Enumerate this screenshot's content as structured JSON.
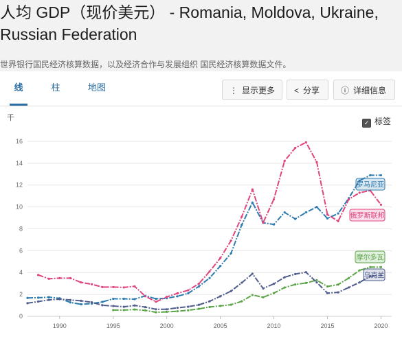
{
  "header": {
    "title": "人均 GDP（现价美元） - Romania, Moldova, Ukraine, Russian Federation",
    "subtitle": "世界银行国民经济核算数据，以及经济合作与发展组织 国民经济核算数据文件。"
  },
  "tabs": [
    {
      "label": "线",
      "active": true
    },
    {
      "label": "柱",
      "active": false
    },
    {
      "label": "地图",
      "active": false
    }
  ],
  "buttons": {
    "more": "显示更多",
    "share": "分享",
    "details": "详细信息"
  },
  "labels_toggle": {
    "label": "标签",
    "checked": true
  },
  "colors": {
    "romania": "#2e7bb0",
    "russia": "#e0447f",
    "moldova": "#5aa446",
    "ukraine": "#4f5d8c",
    "tab_accent": "#2b6ea3"
  },
  "chart_data": {
    "type": "line",
    "unit_label": "千",
    "xlim": [
      1987,
      2021
    ],
    "ylim": [
      0,
      17
    ],
    "x_ticks": [
      1990,
      1995,
      2000,
      2005,
      2010,
      2015,
      2020
    ],
    "y_ticks": [
      0,
      2,
      4,
      6,
      8,
      10,
      12,
      14,
      16
    ],
    "series": [
      {
        "name": "罗马尼亚",
        "key": "romania",
        "x": [
          1987,
          1988,
          1989,
          1990,
          1991,
          1992,
          1993,
          1994,
          1995,
          1996,
          1997,
          1998,
          1999,
          2000,
          2001,
          2002,
          2003,
          2004,
          2005,
          2006,
          2007,
          2008,
          2009,
          2010,
          2011,
          2012,
          2013,
          2014,
          2015,
          2016,
          2017,
          2018,
          2019,
          2020
        ],
        "values": [
          1.68,
          1.7,
          1.75,
          1.65,
          1.27,
          1.1,
          1.16,
          1.32,
          1.6,
          1.6,
          1.57,
          1.87,
          1.6,
          1.65,
          1.83,
          2.1,
          2.73,
          3.5,
          4.6,
          5.76,
          8.36,
          10.4,
          8.55,
          8.4,
          9.5,
          8.9,
          9.5,
          10.0,
          8.95,
          9.4,
          10.8,
          12.4,
          12.9,
          12.9
        ]
      },
      {
        "name": "俄罗斯联邦",
        "key": "russia",
        "x": [
          1988,
          1989,
          1990,
          1991,
          1992,
          1993,
          1994,
          1995,
          1996,
          1997,
          1998,
          1999,
          2000,
          2001,
          2002,
          2003,
          2004,
          2005,
          2006,
          2007,
          2008,
          2009,
          2010,
          2011,
          2012,
          2013,
          2014,
          2015,
          2016,
          2017,
          2018,
          2019,
          2020
        ],
        "values": [
          3.78,
          3.43,
          3.49,
          3.49,
          3.1,
          2.93,
          2.67,
          2.67,
          2.64,
          2.74,
          1.83,
          1.33,
          1.77,
          2.1,
          2.38,
          2.98,
          4.1,
          5.32,
          6.92,
          9.1,
          11.6,
          8.56,
          10.7,
          14.2,
          15.4,
          15.9,
          14.1,
          9.3,
          8.7,
          10.7,
          11.3,
          11.5,
          10.2
        ]
      },
      {
        "name": "摩尔多瓦",
        "key": "moldova",
        "x": [
          1995,
          1996,
          1997,
          1998,
          1999,
          2000,
          2001,
          2002,
          2003,
          2004,
          2005,
          2006,
          2007,
          2008,
          2009,
          2010,
          2011,
          2012,
          2013,
          2014,
          2015,
          2016,
          2017,
          2018,
          2019,
          2020
        ],
        "values": [
          0.57,
          0.57,
          0.62,
          0.54,
          0.37,
          0.41,
          0.46,
          0.55,
          0.68,
          0.85,
          0.95,
          1.06,
          1.37,
          1.95,
          1.74,
          2.12,
          2.63,
          2.91,
          3.05,
          3.3,
          2.73,
          2.9,
          3.5,
          4.2,
          4.5,
          4.5
        ]
      },
      {
        "name": "乌克兰",
        "key": "ukraine",
        "x": [
          1987,
          1988,
          1989,
          1990,
          1991,
          1992,
          1993,
          1994,
          1995,
          1996,
          1997,
          1998,
          1999,
          2000,
          2001,
          2002,
          2003,
          2004,
          2005,
          2006,
          2007,
          2008,
          2009,
          2010,
          2011,
          2012,
          2013,
          2014,
          2015,
          2016,
          2017,
          2018,
          2019,
          2020
        ],
        "values": [
          1.2,
          1.35,
          1.5,
          1.57,
          1.49,
          1.42,
          1.28,
          1.01,
          0.94,
          0.87,
          0.99,
          0.84,
          0.64,
          0.64,
          0.78,
          0.88,
          1.05,
          1.37,
          1.83,
          2.3,
          3.07,
          3.89,
          2.55,
          2.97,
          3.57,
          3.86,
          4.03,
          3.1,
          2.12,
          2.19,
          2.64,
          3.1,
          3.66,
          3.75
        ]
      }
    ]
  }
}
